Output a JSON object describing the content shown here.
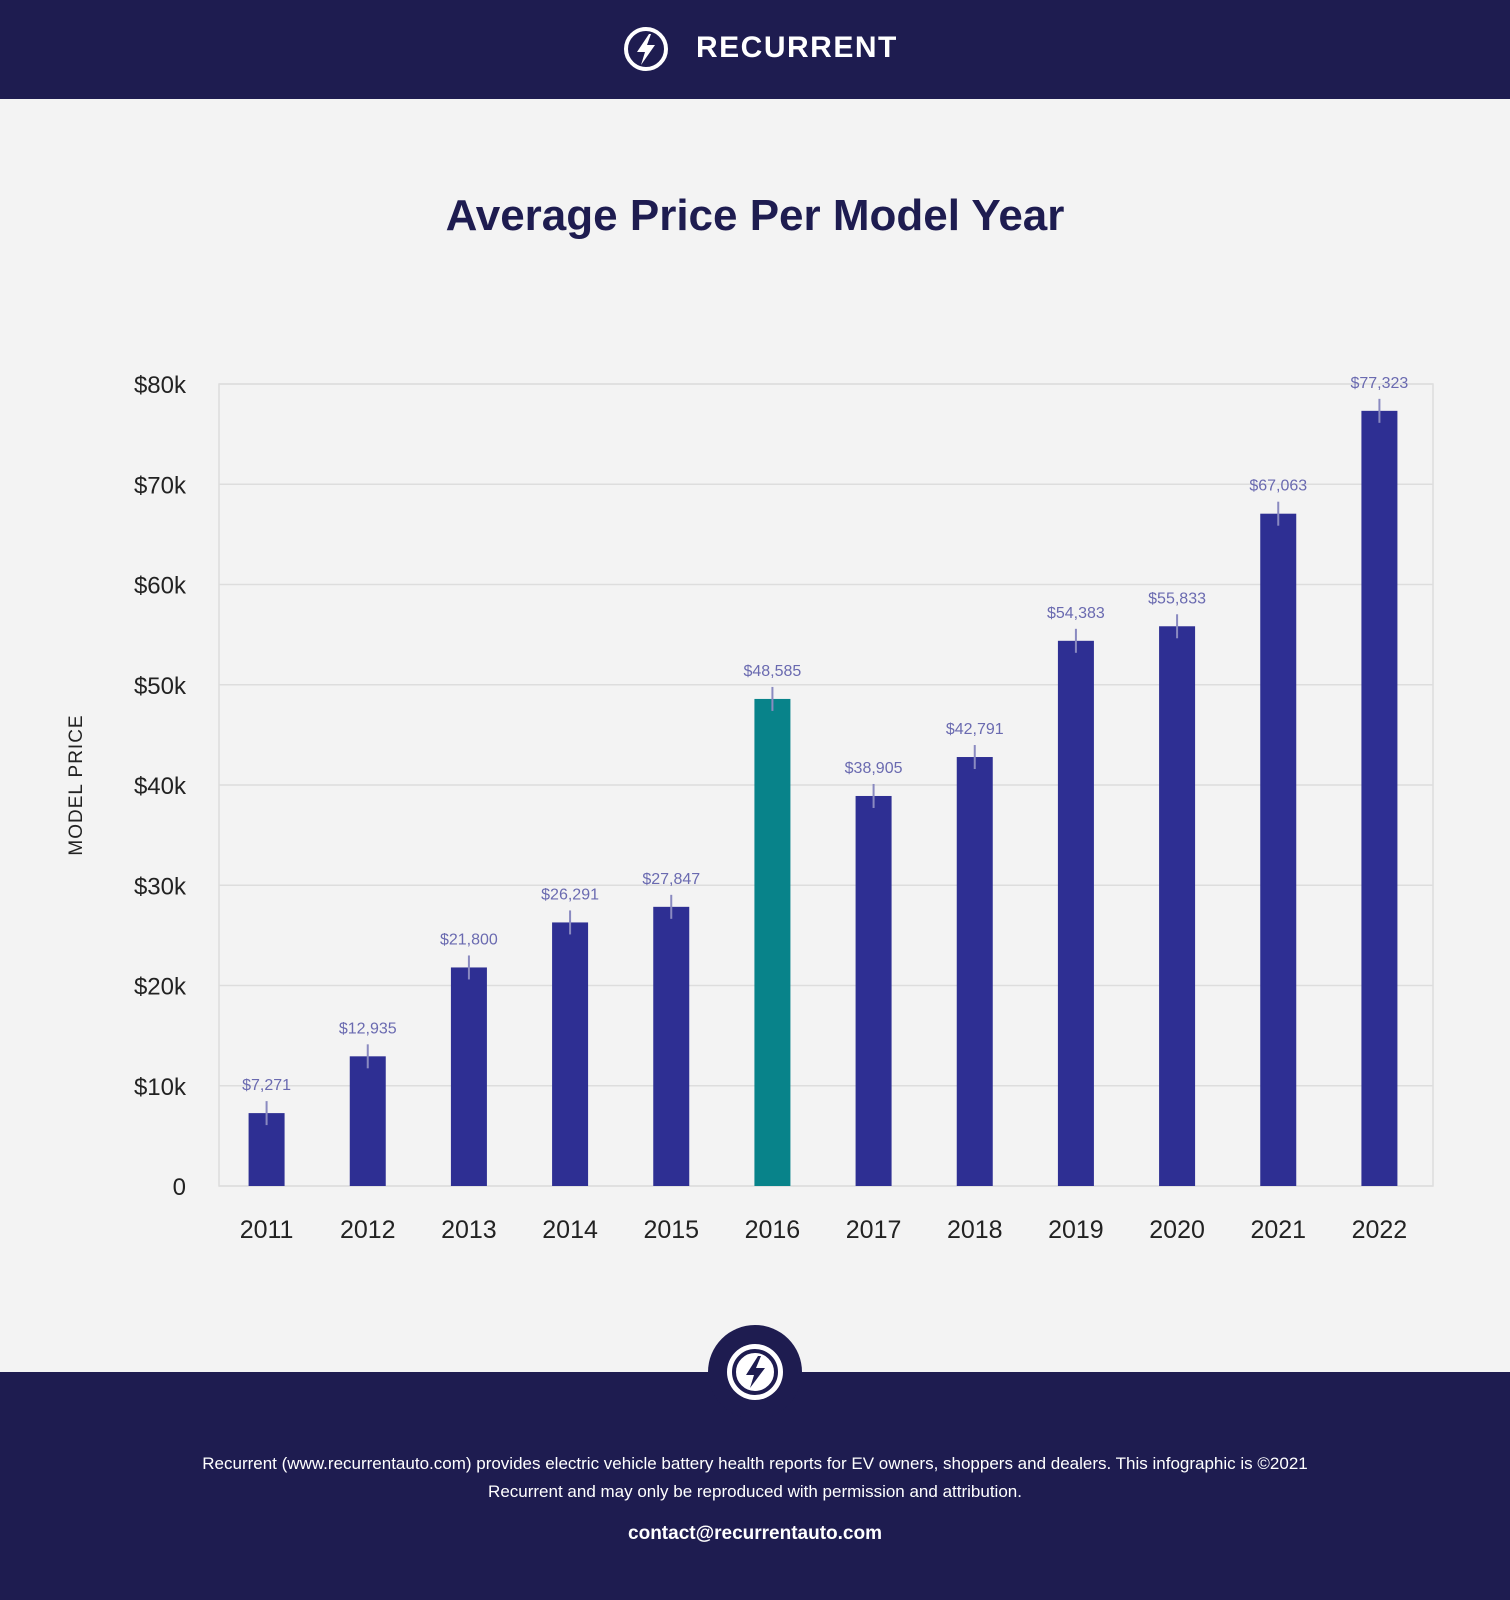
{
  "header": {
    "brand_name": "RECURRENT",
    "logo_icon": "bolt-circle-icon"
  },
  "chart_data": {
    "type": "bar",
    "title": "Average Price Per Model Year",
    "xlabel": "",
    "ylabel": "MODEL PRICE",
    "categories": [
      "2011",
      "2012",
      "2013",
      "2014",
      "2015",
      "2016",
      "2017",
      "2018",
      "2019",
      "2020",
      "2021",
      "2022"
    ],
    "values": [
      7271,
      12935,
      21800,
      26291,
      27847,
      48585,
      38905,
      42791,
      54383,
      55833,
      67063,
      77323
    ],
    "data_labels": [
      "$7,271",
      "$12,935",
      "$21,800",
      "$26,291",
      "$27,847",
      "$48,585",
      "$38,905",
      "$42,791",
      "$54,383",
      "$55,833",
      "$67,063",
      "$77,323"
    ],
    "highlight_index": 5,
    "ylim": [
      0,
      80000
    ],
    "yticks": [
      0,
      10000,
      20000,
      30000,
      40000,
      50000,
      60000,
      70000,
      80000
    ],
    "ytick_labels": [
      "0",
      "$10k",
      "$20k",
      "$30k",
      "$40k",
      "$50k",
      "$60k",
      "$70k",
      "$80k"
    ],
    "grid": true,
    "error_bars": true,
    "colors": {
      "bar": "#2e2f93",
      "highlight": "#08838a",
      "data_label": "#6a6ab0",
      "grid": "#dddddd",
      "error_bar": "#8a8ac0"
    }
  },
  "footer": {
    "description": "Recurrent (www.recurrentauto.com) provides electric vehicle battery health reports for EV owners, shoppers and dealers. This infographic is ©2021 Recurrent and may only be reproduced with permission and attribution.",
    "contact": "contact@recurrentauto.com",
    "logo_icon": "bolt-circle-icon"
  }
}
